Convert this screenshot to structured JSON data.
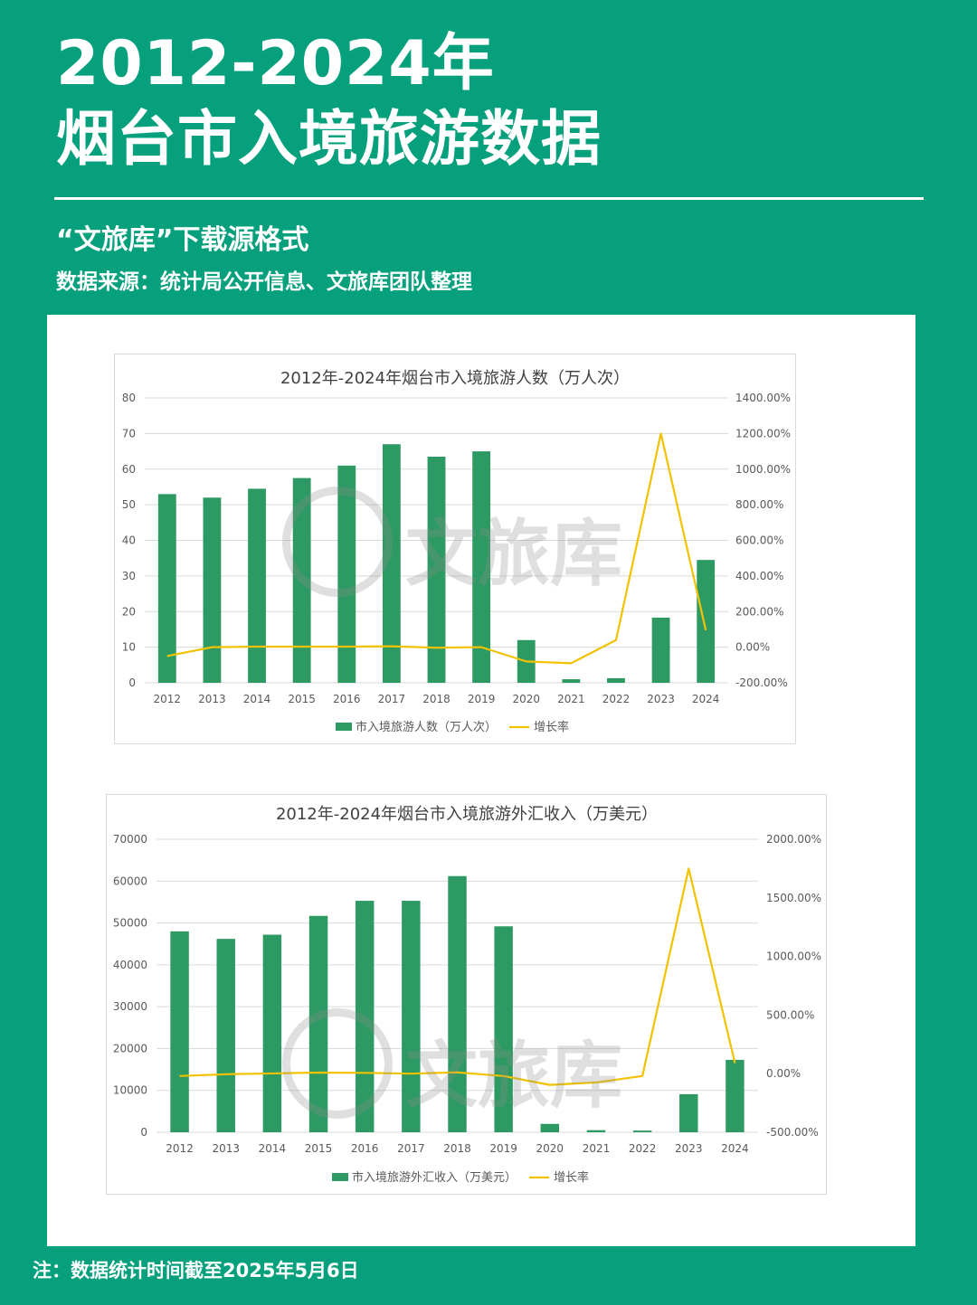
{
  "header": {
    "title_line1": "2012-2024年",
    "title_line2": "烟台市入境旅游数据",
    "subtitle": "“文旅库”下载源格式",
    "source": "数据来源：统计局公开信息、文旅库团队整理"
  },
  "watermark": {
    "text": "文旅库"
  },
  "footnote": "注：数据统计时间截至2025年5月6日",
  "colors": {
    "background": "#06a07c",
    "bar": "#2e9a63",
    "line": "#f2c200"
  },
  "chart_data": [
    {
      "type": "bar",
      "title": "2012年-2024年烟台市入境旅游人数（万人次）",
      "categories": [
        "2012",
        "2013",
        "2014",
        "2015",
        "2016",
        "2017",
        "2018",
        "2019",
        "2020",
        "2021",
        "2022",
        "2023",
        "2024"
      ],
      "series": [
        {
          "name": "市入境旅游人数（万人次）",
          "type": "bar",
          "axis": "left",
          "values": [
            53,
            52,
            54.5,
            57.5,
            61,
            67,
            63.5,
            65,
            12,
            1,
            1.3,
            18.3,
            34.5
          ]
        },
        {
          "name": "增长率",
          "type": "line",
          "axis": "right",
          "values": [
            -50,
            0,
            3,
            3,
            3,
            5,
            -3,
            0,
            -80,
            -90,
            40,
            1200,
            95
          ]
        }
      ],
      "left_axis": {
        "ylim": [
          0,
          80
        ],
        "ticks": [
          "0",
          "10",
          "20",
          "30",
          "40",
          "50",
          "60",
          "70",
          "80"
        ]
      },
      "right_axis": {
        "ylim": [
          -200,
          1400
        ],
        "ticks": [
          "-200.00%",
          "0.00%",
          "200.00%",
          "400.00%",
          "600.00%",
          "800.00%",
          "1000.00%",
          "1200.00%",
          "1400.00%"
        ]
      },
      "grid": true,
      "legend": "bottom"
    },
    {
      "type": "bar",
      "title": "2012年-2024年烟台市入境旅游外汇收入（万美元）",
      "categories": [
        "2012",
        "2013",
        "2014",
        "2015",
        "2016",
        "2017",
        "2018",
        "2019",
        "2020",
        "2021",
        "2022",
        "2023",
        "2024"
      ],
      "series": [
        {
          "name": "市入境旅游外汇收入（万美元）",
          "type": "bar",
          "axis": "left",
          "values": [
            48000,
            46200,
            47200,
            51700,
            55300,
            55300,
            61200,
            49200,
            2000,
            500,
            400,
            9100,
            17300
          ]
        },
        {
          "name": "增长率",
          "type": "line",
          "axis": "right",
          "values": [
            -20,
            -5,
            2,
            9,
            7,
            0,
            11,
            -20,
            -96,
            -75,
            -20,
            1750,
            90
          ]
        }
      ],
      "left_axis": {
        "ylim": [
          0,
          70000
        ],
        "ticks": [
          "0",
          "10000",
          "20000",
          "30000",
          "40000",
          "50000",
          "60000",
          "70000"
        ]
      },
      "right_axis": {
        "ylim": [
          -500,
          2000
        ],
        "ticks": [
          "-500.00%",
          "0.00%",
          "500.00%",
          "1000.00%",
          "1500.00%",
          "2000.00%"
        ]
      },
      "grid": true,
      "legend": "bottom"
    }
  ]
}
